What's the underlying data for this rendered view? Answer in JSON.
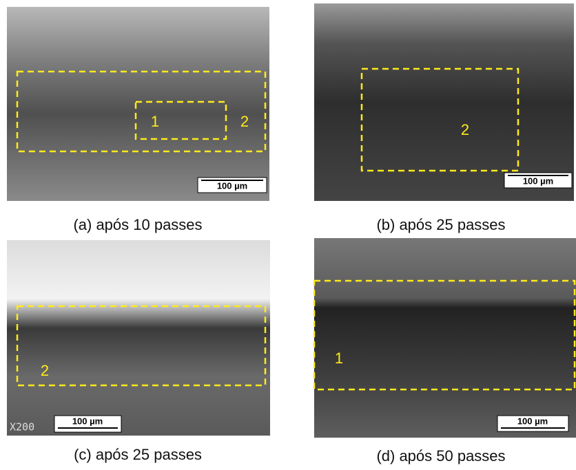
{
  "panels": [
    {
      "caption": "(a) após 10 passes",
      "scale_bar": "100 µm",
      "regions": [
        "1",
        "2"
      ]
    },
    {
      "caption": "(b) após 25 passes",
      "scale_bar": "100 µm",
      "regions": [
        "2"
      ]
    },
    {
      "caption": "(c) após 25 passes",
      "scale_bar": "100 µm",
      "regions": [
        "2"
      ],
      "magnification": "X200"
    },
    {
      "caption": "(d) após 50 passes",
      "scale_bar": "100 µm",
      "regions": [
        "1"
      ]
    }
  ]
}
